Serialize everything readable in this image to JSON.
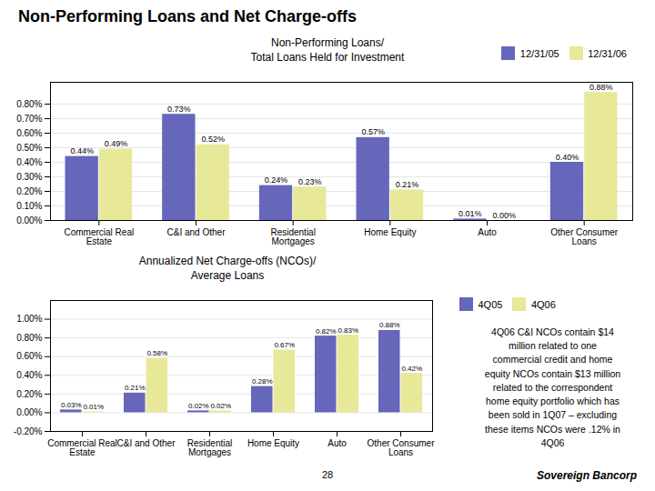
{
  "title": "Non-Performing Loans and Net Charge-offs",
  "chart_data": [
    {
      "type": "bar",
      "title": "Non-Performing Loans/\nTotal Loans Held for Investment",
      "categories": [
        "Commercial Real\nEstate",
        "C&I and Other",
        "Residential\nMortgages",
        "Home Equity",
        "Auto",
        "Other Consumer\nLoans"
      ],
      "series": [
        {
          "name": "12/31/05",
          "color": "#6666bb",
          "values": [
            0.0044,
            0.0073,
            0.0024,
            0.0057,
            0.0001,
            0.004
          ],
          "value_labels": [
            "0.44%",
            "0.73%",
            "0.24%",
            "0.57%",
            "0.01%",
            "0.40%"
          ]
        },
        {
          "name": "12/31/06",
          "color": "#e8e899",
          "values": [
            0.0049,
            0.0052,
            0.0023,
            0.0021,
            0.0,
            0.0088
          ],
          "value_labels": [
            "0.49%",
            "0.52%",
            "0.23%",
            "0.21%",
            "0.00%",
            "0.88%"
          ]
        }
      ],
      "ylim": [
        0,
        0.0095
      ],
      "yticks": [
        {
          "value": 0.0,
          "label": "0.00%"
        },
        {
          "value": 0.001,
          "label": "0.10%"
        },
        {
          "value": 0.002,
          "label": "0.20%"
        },
        {
          "value": 0.003,
          "label": "0.30%"
        },
        {
          "value": 0.004,
          "label": "0.40%"
        },
        {
          "value": 0.005,
          "label": "0.50%"
        },
        {
          "value": 0.006,
          "label": "0.60%"
        },
        {
          "value": 0.007,
          "label": "0.70%"
        },
        {
          "value": 0.008,
          "label": "0.80%"
        }
      ],
      "grid": true,
      "legend": "top right",
      "data_labels": true
    },
    {
      "type": "bar",
      "title": "Annualized Net Charge-offs (NCOs)/\nAverage Loans",
      "categories": [
        "Commercial Real\nEstate",
        "C&I and Other",
        "Residential\nMortgages",
        "Home Equity",
        "Auto",
        "Other Consumer\nLoans"
      ],
      "series": [
        {
          "name": "4Q05",
          "color": "#6666bb",
          "values": [
            0.0003,
            0.0021,
            0.0002,
            0.0028,
            0.0082,
            0.0088
          ],
          "value_labels": [
            "0.03%",
            "0.21%",
            "0.02%",
            "0.28%",
            "0.82%",
            "0.88%"
          ]
        },
        {
          "name": "4Q06",
          "color": "#e8e899",
          "values": [
            0.0001,
            0.0058,
            0.0002,
            0.0067,
            0.0083,
            0.0042
          ],
          "value_labels": [
            "0.01%",
            "0.58%",
            "0.02%",
            "0.67%",
            "0.83%",
            "0.42%"
          ]
        }
      ],
      "ylim": [
        -0.002,
        0.012
      ],
      "yticks": [
        {
          "value": -0.002,
          "label": "-0.20%"
        },
        {
          "value": 0.0,
          "label": "0.00%"
        },
        {
          "value": 0.002,
          "label": "0.20%"
        },
        {
          "value": 0.004,
          "label": "0.40%"
        },
        {
          "value": 0.006,
          "label": "0.60%"
        },
        {
          "value": 0.008,
          "label": "0.80%"
        },
        {
          "value": 0.01,
          "label": "1.00%"
        }
      ],
      "grid": true,
      "legend": "right",
      "data_labels": true,
      "annotation": "4Q06 C&I NCOs contain $14\nmillion related to one\ncommercial credit and home\nequity NCOs contain $13 million\nrelated to the correspondent\nhome equity portfolio which has\nbeen sold in 1Q07 – excluding\nthese items NCOs were .12% in\n4Q06"
    }
  ],
  "page_number": "28",
  "footer": "Sovereign Bancorp"
}
